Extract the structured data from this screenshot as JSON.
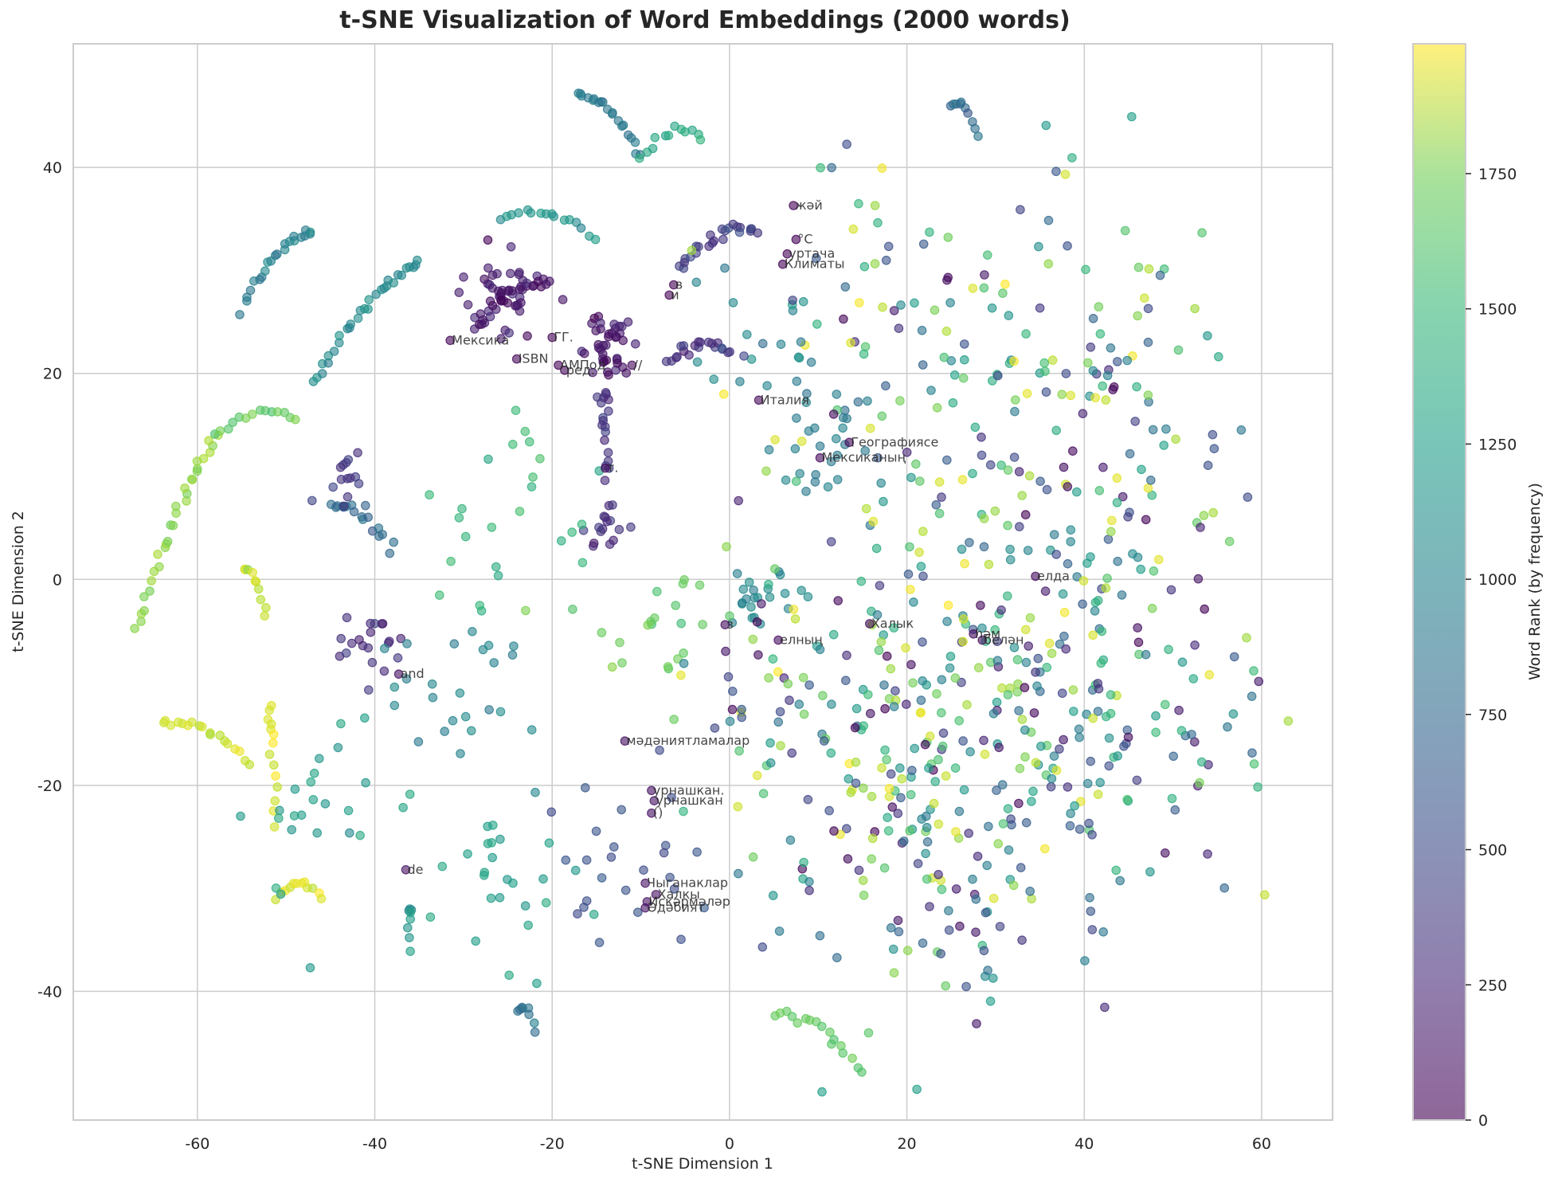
{
  "chart_data": {
    "type": "scatter",
    "title": "t-SNE Visualization of Word Embeddings (2000 words)",
    "xlabel": "t-SNE Dimension 1",
    "ylabel": "t-SNE Dimension 2",
    "xlim": [
      -74,
      68
    ],
    "ylim": [
      -52.5,
      52
    ],
    "xticks": [
      -60,
      -40,
      -20,
      0,
      20,
      40,
      60
    ],
    "yticks": [
      -40,
      -20,
      0,
      20,
      40
    ],
    "grid": true,
    "n_points": 2000,
    "marker_alpha": 0.6,
    "colormap": "viridis",
    "colorbar": {
      "label": "Word Rank (by frequency)",
      "range": [
        0,
        1990
      ],
      "ticks": [
        0,
        250,
        500,
        750,
        1000,
        1250,
        1500,
        1750
      ]
    },
    "annotations": [
      {
        "text": "жәй",
        "x": 7.2,
        "y": 36.3
      },
      {
        "text": "°C",
        "x": 7.5,
        "y": 33.0
      },
      {
        "text": "уртача",
        "x": 6.5,
        "y": 31.6
      },
      {
        "text": "Климаты",
        "x": 6.0,
        "y": 30.6
      },
      {
        "text": "в",
        "x": -6.3,
        "y": 28.6
      },
      {
        "text": "и",
        "x": -6.8,
        "y": 27.6
      },
      {
        "text": "Мексика",
        "x": -31.5,
        "y": 23.2
      },
      {
        "text": "ГГ.",
        "x": -20.0,
        "y": 23.5
      },
      {
        "text": "ISBN",
        "x": -24.0,
        "y": 21.4
      },
      {
        "text": "АМПод",
        "x": -19.3,
        "y": 20.8
      },
      {
        "text": "ред.",
        "x": -18.6,
        "y": 20.3
      },
      {
        "text": "//",
        "x": -11.0,
        "y": 20.8
      },
      {
        "text": "т.",
        "x": -14.0,
        "y": 10.8
      },
      {
        "text": "Италия",
        "x": 3.3,
        "y": 17.4
      },
      {
        "text": "Географиясе",
        "x": 13.5,
        "y": 13.3
      },
      {
        "text": "Мексиканың",
        "x": 10.2,
        "y": 11.8
      },
      {
        "text": "елда",
        "x": 34.5,
        "y": 0.3
      },
      {
        "text": "з",
        "x": -0.5,
        "y": -4.4
      },
      {
        "text": "Халык",
        "x": 15.8,
        "y": -4.3
      },
      {
        "text": "елның",
        "x": 5.5,
        "y": -5.9
      },
      {
        "text": "һәм",
        "x": 27.5,
        "y": -5.3
      },
      {
        "text": "белән",
        "x": 28.5,
        "y": -5.9
      },
      {
        "text": "and",
        "x": -37.3,
        "y": -9.2
      },
      {
        "text": "мәдәниятламалар",
        "x": -11.8,
        "y": -15.7
      },
      {
        "text": "урнашкан.",
        "x": -8.8,
        "y": -20.5
      },
      {
        "text": "урнашкан",
        "x": -8.5,
        "y": -21.5
      },
      {
        "text": "()",
        "x": -8.8,
        "y": -22.7
      },
      {
        "text": "de",
        "x": -36.5,
        "y": -28.2
      },
      {
        "text": "Чыганаклар",
        "x": -9.5,
        "y": -29.5
      },
      {
        "text": "Халкы",
        "x": -8.3,
        "y": -30.6
      },
      {
        "text": "Искәрмәләр",
        "x": -9.3,
        "y": -31.3
      },
      {
        "text": "Әдәбият",
        "x": -9.5,
        "y": -31.9
      }
    ],
    "clusters": [
      {
        "shape": "arc",
        "x0": -67,
        "y0": -5,
        "x1": -58,
        "y1": 14,
        "n": 30,
        "rank": 1650,
        "spread": 0.6
      },
      {
        "shape": "arc",
        "x0": -58,
        "y0": 14,
        "x1": -49,
        "y1": 15.5,
        "n": 14,
        "rank": 1500,
        "spread": 0.4
      },
      {
        "shape": "arc",
        "x0": -55,
        "y0": 26,
        "x1": -47,
        "y1": 34,
        "n": 22,
        "rank": 850,
        "spread": 0.6
      },
      {
        "shape": "arc",
        "x0": -47,
        "y0": 19,
        "x1": -35,
        "y1": 31,
        "n": 30,
        "rank": 950,
        "spread": 0.5
      },
      {
        "shape": "arc",
        "x0": -64,
        "y0": -14,
        "x1": -54,
        "y1": -18,
        "n": 18,
        "rank": 1850,
        "spread": 0.5
      },
      {
        "shape": "arc",
        "x0": -55,
        "y0": 1,
        "x1": -52,
        "y1": -4,
        "n": 10,
        "rank": 1850,
        "spread": 0.5
      },
      {
        "shape": "arc",
        "x0": -52,
        "y0": -12,
        "x1": -51,
        "y1": -24,
        "n": 14,
        "rank": 1850,
        "spread": 0.5
      },
      {
        "shape": "arc",
        "x0": -51,
        "y0": -31,
        "x1": -46,
        "y1": -31,
        "n": 12,
        "rank": 1880,
        "spread": 0.3
      },
      {
        "shape": "arc",
        "x0": -45,
        "y0": 7,
        "x1": -38,
        "y1": 3,
        "n": 18,
        "rank": 700,
        "spread": 0.8
      },
      {
        "shape": "blob",
        "x": -43,
        "y": 9.5,
        "n": 14,
        "rank": 320,
        "spread": 1.2
      },
      {
        "shape": "blob",
        "x": -40,
        "y": -6,
        "n": 20,
        "rank": 250,
        "spread": 1.8
      },
      {
        "shape": "blob",
        "x": -26,
        "y": 28,
        "n": 45,
        "rank": 150,
        "spread": 2.2
      },
      {
        "shape": "blob",
        "x": -14,
        "y": 22.5,
        "n": 40,
        "rank": 120,
        "spread": 1.6
      },
      {
        "shape": "arc",
        "x0": -29,
        "y0": 24,
        "x1": -20,
        "y1": 29,
        "n": 20,
        "rank": 100,
        "spread": 0.8
      },
      {
        "shape": "arc",
        "x0": -14,
        "y0": 18,
        "x1": -14,
        "y1": 10,
        "n": 18,
        "rank": 300,
        "spread": 0.8
      },
      {
        "shape": "blob",
        "x": -14,
        "y": 5.5,
        "n": 16,
        "rank": 280,
        "spread": 1.2
      },
      {
        "shape": "arc",
        "x0": -7,
        "y0": 21,
        "x1": 0,
        "y1": 22,
        "n": 20,
        "rank": 280,
        "spread": 0.6
      },
      {
        "shape": "arc",
        "x0": -6,
        "y0": 30,
        "x1": 3,
        "y1": 34,
        "n": 24,
        "rank": 350,
        "spread": 0.8
      },
      {
        "shape": "arc",
        "x0": -26,
        "y0": 35,
        "x1": -15,
        "y1": 33,
        "n": 16,
        "rank": 1000,
        "spread": 0.5
      },
      {
        "shape": "arc",
        "x0": -17,
        "y0": 47,
        "x1": -10,
        "y1": 41,
        "n": 20,
        "rank": 800,
        "spread": 0.6
      },
      {
        "shape": "arc",
        "x0": -10,
        "y0": 41,
        "x1": -3,
        "y1": 43,
        "n": 12,
        "rank": 1200,
        "spread": 0.5
      },
      {
        "shape": "arc",
        "x0": 25,
        "y0": 46,
        "x1": 28,
        "y1": 43,
        "n": 10,
        "rank": 700,
        "spread": 0.4
      },
      {
        "shape": "arc",
        "x0": -24,
        "y0": -42,
        "x1": -22,
        "y1": -44,
        "n": 8,
        "rank": 750,
        "spread": 0.4
      },
      {
        "shape": "arc",
        "x0": 5,
        "y0": -42,
        "x1": 15,
        "y1": -48,
        "n": 16,
        "rank": 1500,
        "spread": 0.5
      },
      {
        "shape": "arc",
        "x0": -36,
        "y0": -32,
        "x1": -36,
        "y1": -36,
        "n": 8,
        "rank": 1000,
        "spread": 0.3
      },
      {
        "shape": "blob",
        "x": 4,
        "y": 27,
        "n": 10,
        "rank": 950,
        "spread": 4
      },
      {
        "shape": "blob",
        "x": 3,
        "y": -2,
        "n": 22,
        "rank": 900,
        "spread": 2.5
      },
      {
        "shape": "blob",
        "x": 10,
        "y": 14,
        "n": 30,
        "rank": 800,
        "spread": 3
      },
      {
        "shape": "blob",
        "x": -30,
        "y": -12,
        "n": 25,
        "rank": 900,
        "spread": 4
      },
      {
        "shape": "blob",
        "x": -26,
        "y": -28,
        "n": 25,
        "rank": 1100,
        "spread": 5
      },
      {
        "shape": "blob",
        "x": -12,
        "y": -28,
        "n": 25,
        "rank": 500,
        "spread": 5
      },
      {
        "shape": "blob",
        "x": -25,
        "y": 8,
        "n": 25,
        "rank": 1300,
        "spread": 5
      },
      {
        "shape": "blob",
        "x": -8,
        "y": -5,
        "n": 25,
        "rank": 1500,
        "spread": 5
      },
      {
        "shape": "blob",
        "x": -45,
        "y": -22,
        "n": 25,
        "rank": 1100,
        "spread": 5
      },
      {
        "shape": "blob",
        "x": 30,
        "y": -10,
        "n": 200,
        "rank": "mixed",
        "spread": 12
      },
      {
        "shape": "blob",
        "x": 35,
        "y": 10,
        "n": 120,
        "rank": "mixed",
        "spread": 12
      },
      {
        "shape": "blob",
        "x": 15,
        "y": 25,
        "n": 60,
        "rank": "mixed",
        "spread": 9
      },
      {
        "shape": "blob",
        "x": 25,
        "y": -28,
        "n": 90,
        "rank": "mixed",
        "spread": 9
      },
      {
        "shape": "blob",
        "x": 45,
        "y": -15,
        "n": 70,
        "rank": "mixed",
        "spread": 8
      },
      {
        "shape": "blob",
        "x": 10,
        "y": -15,
        "n": 90,
        "rank": "mixed",
        "spread": 8
      },
      {
        "shape": "blob",
        "x": 40,
        "y": 25,
        "n": 40,
        "rank": "mixed",
        "spread": 8
      }
    ]
  }
}
